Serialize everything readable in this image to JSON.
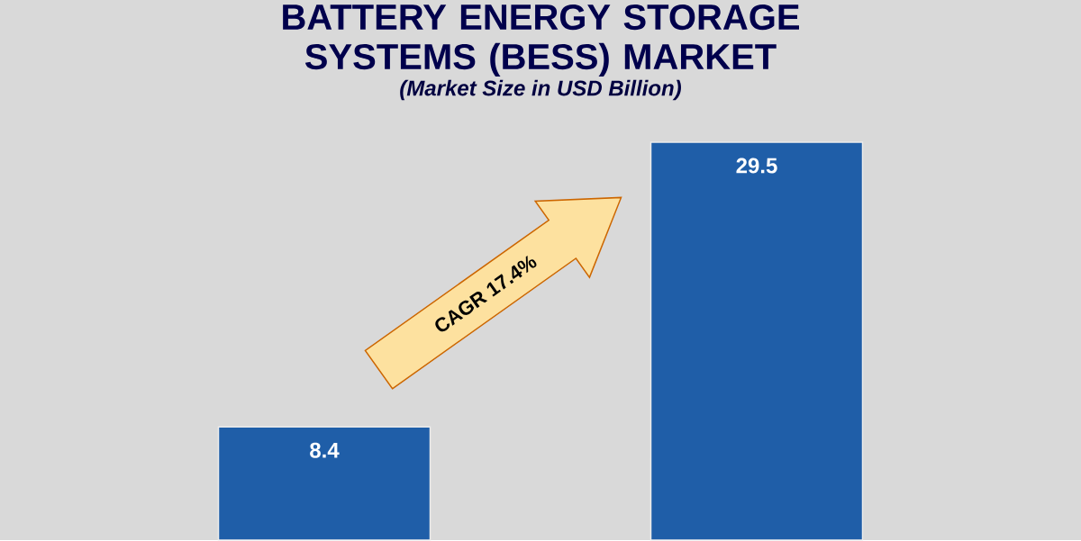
{
  "chart_data": {
    "type": "bar",
    "title": "BATTERY ENERGY STORAGE SYSTEMS (BESS) MARKET",
    "subtitle": "(Market Size in USD Billion)",
    "categories": [
      null,
      null
    ],
    "values": [
      8.4,
      29.5
    ],
    "color": "#1f5ea8",
    "data_labels": true,
    "annotations": [
      "CAGR 17.4%"
    ]
  }
}
